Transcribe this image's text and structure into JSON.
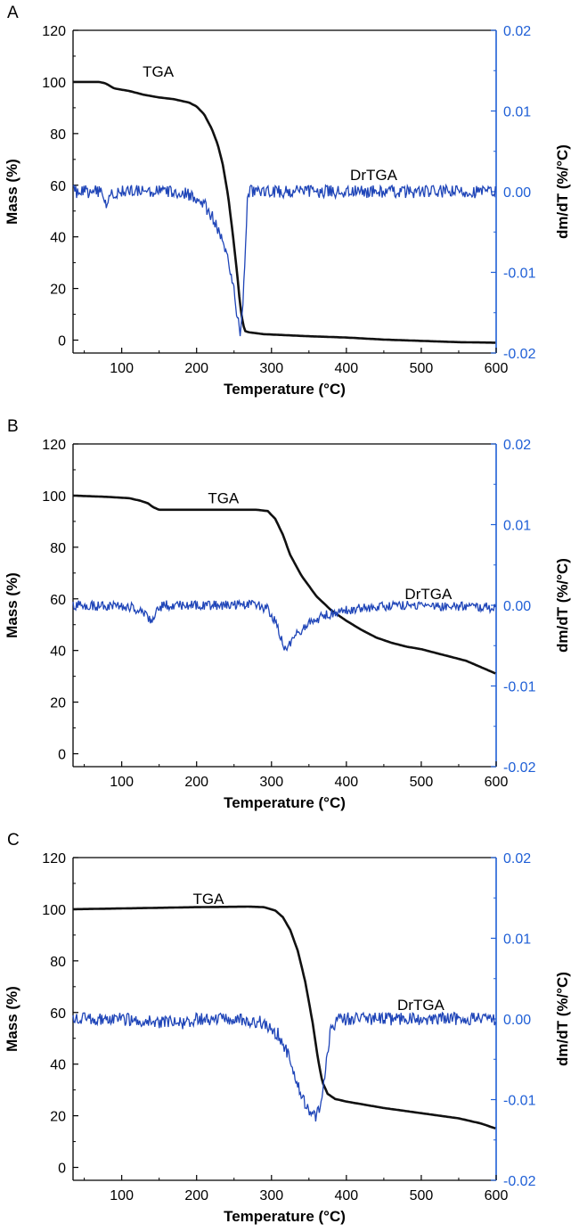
{
  "colors": {
    "tga": "#111111",
    "drtga": "#1f45b8",
    "axis_right": "#1f5fd6",
    "axis_left": "#000000"
  },
  "chart_data": [
    {
      "type": "line",
      "panel_label": "A",
      "xlabel": "Temperature (°C)",
      "ylabel": "Mass (%)",
      "y2label": "dm/dT (%/°C)",
      "xlim": [
        35,
        600
      ],
      "ylim": [
        -5,
        120
      ],
      "y2lim": [
        -0.02,
        0.02
      ],
      "xticks": [
        "100",
        "200",
        "300",
        "400",
        "500",
        "600"
      ],
      "yticks": [
        "0",
        "20",
        "40",
        "60",
        "80",
        "100",
        "120"
      ],
      "y2ticks": [
        "-0.02",
        "-0.01",
        "0.00",
        "0.01",
        "0.02"
      ],
      "annotations": {
        "tga": "TGA",
        "drtga": "DrTGA"
      },
      "series": [
        {
          "name": "TGA",
          "axis": "left",
          "x": [
            35,
            60,
            70,
            78,
            90,
            110,
            130,
            150,
            170,
            190,
            200,
            210,
            220,
            228,
            235,
            242,
            248,
            254,
            258,
            262,
            265,
            270,
            290,
            350,
            400,
            450,
            500,
            550,
            600
          ],
          "y": [
            100,
            100,
            100,
            99.5,
            97.5,
            96.5,
            95,
            94,
            93.3,
            92,
            90.5,
            87.5,
            82,
            76,
            68,
            56,
            42,
            26,
            14,
            6,
            3.5,
            3,
            2.3,
            1.5,
            1,
            0.2,
            -0.3,
            -0.8,
            -1
          ]
        },
        {
          "name": "DrTGA",
          "axis": "right",
          "noise": 0.0008,
          "x": [
            35,
            72,
            76,
            80,
            84,
            90,
            150,
            180,
            195,
            210,
            220,
            230,
            240,
            248,
            254,
            258,
            262,
            265,
            268,
            272,
            280,
            400,
            600
          ],
          "y": [
            0,
            0,
            -0.0007,
            -0.0018,
            -0.0007,
            0,
            0,
            0,
            -0.0005,
            -0.0015,
            -0.003,
            -0.005,
            -0.008,
            -0.011,
            -0.015,
            -0.0175,
            -0.014,
            -0.007,
            -0.001,
            0,
            0,
            0,
            0
          ]
        }
      ]
    },
    {
      "type": "line",
      "panel_label": "B",
      "xlabel": "Temperature (°C)",
      "ylabel": "Mass (%)",
      "y2label": "dm/dT (%/°C)",
      "xlim": [
        35,
        600
      ],
      "ylim": [
        -5,
        120
      ],
      "y2lim": [
        -0.02,
        0.02
      ],
      "xticks": [
        "100",
        "200",
        "300",
        "400",
        "500",
        "600"
      ],
      "yticks": [
        "0",
        "20",
        "40",
        "60",
        "80",
        "100",
        "120"
      ],
      "y2ticks": [
        "-0.02",
        "-0.01",
        "0.00",
        "0.01",
        "0.02"
      ],
      "annotations": {
        "tga": "TGA",
        "drtga": "DrTGA"
      },
      "series": [
        {
          "name": "TGA",
          "axis": "left",
          "x": [
            35,
            80,
            110,
            125,
            135,
            142,
            150,
            200,
            280,
            295,
            305,
            315,
            325,
            340,
            360,
            380,
            400,
            420,
            440,
            460,
            480,
            500,
            520,
            540,
            560,
            580,
            600
          ],
          "y": [
            100,
            99.5,
            99,
            98,
            97,
            95.5,
            94.5,
            94.5,
            94.5,
            94,
            91,
            85,
            77,
            69,
            61,
            55.5,
            51.5,
            48,
            45,
            43,
            41.5,
            40.5,
            39,
            37.5,
            36,
            33.5,
            31
          ]
        },
        {
          "name": "DrTGA",
          "axis": "right",
          "noise": 0.0006,
          "x": [
            35,
            110,
            125,
            135,
            140,
            145,
            155,
            200,
            280,
            295,
            305,
            312,
            318,
            323,
            330,
            345,
            365,
            380,
            400,
            430,
            460,
            500,
            550,
            600
          ],
          "y": [
            0,
            -0.0002,
            -0.0006,
            -0.0014,
            -0.0018,
            -0.001,
            0,
            0,
            0,
            -0.0005,
            -0.002,
            -0.004,
            -0.0055,
            -0.0052,
            -0.004,
            -0.0025,
            -0.0015,
            -0.001,
            -0.0006,
            -0.0003,
            0,
            0,
            -0.0001,
            -0.0003
          ]
        }
      ]
    },
    {
      "type": "line",
      "panel_label": "C",
      "xlabel": "Temperature (°C)",
      "ylabel": "Mass (%)",
      "y2label": "dm/dT (%/°C)",
      "xlim": [
        35,
        600
      ],
      "ylim": [
        -5,
        120
      ],
      "y2lim": [
        -0.02,
        0.02
      ],
      "xticks": [
        "100",
        "200",
        "300",
        "400",
        "500",
        "600"
      ],
      "yticks": [
        "0",
        "20",
        "40",
        "60",
        "80",
        "100",
        "120"
      ],
      "y2ticks": [
        "-0.02",
        "-0.01",
        "0.00",
        "0.01",
        "0.02"
      ],
      "annotations": {
        "tga": "TGA",
        "drtga": "DrTGA"
      },
      "series": [
        {
          "name": "TGA",
          "axis": "left",
          "x": [
            35,
            100,
            200,
            270,
            290,
            305,
            315,
            325,
            335,
            345,
            355,
            362,
            368,
            375,
            385,
            400,
            450,
            500,
            550,
            580,
            600
          ],
          "y": [
            100,
            100.3,
            100.8,
            101,
            100.8,
            99.5,
            97,
            92,
            84,
            72,
            56,
            42,
            33,
            28.5,
            26.5,
            25.5,
            23,
            21,
            19,
            17,
            15
          ]
        },
        {
          "name": "DrTGA",
          "axis": "right",
          "noise": 0.0008,
          "x": [
            35,
            100,
            160,
            180,
            200,
            260,
            290,
            310,
            320,
            330,
            340,
            350,
            358,
            365,
            370,
            375,
            380,
            390,
            400,
            600
          ],
          "y": [
            0,
            0,
            -0.0004,
            -0.0005,
            0,
            0,
            -0.0005,
            -0.002,
            -0.004,
            -0.0065,
            -0.0095,
            -0.0115,
            -0.0123,
            -0.011,
            -0.008,
            -0.004,
            -0.001,
            0,
            0,
            0
          ]
        }
      ]
    }
  ]
}
